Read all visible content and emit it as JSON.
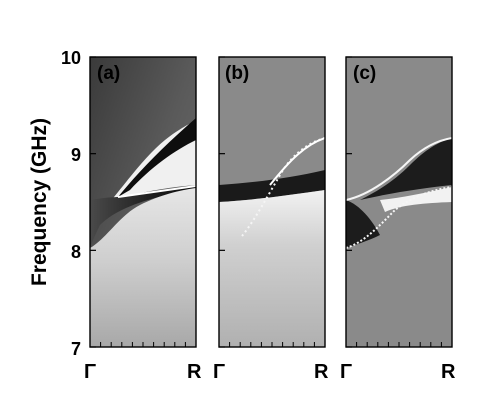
{
  "chart_data": {
    "type": "heatmap",
    "ylabel": "Frequency (GHz)",
    "ylim": [
      7,
      10
    ],
    "yticks": [
      7,
      8,
      9,
      10
    ],
    "xticks": [
      "Γ",
      "R"
    ],
    "grid": false,
    "panels": [
      {
        "label": "(a)",
        "background_shades": [
          "#3a3a3a",
          "#5a5a5a",
          "#707070",
          "#888888",
          "#b0b0b0",
          "#d0d0d0",
          "#e6e6e6"
        ],
        "mode_curves": [
          {
            "name": "lower edge",
            "x": [
              0,
              0.2,
              0.4,
              0.6,
              0.8,
              1.0
            ],
            "y": [
              8.0,
              8.1,
              8.3,
              8.5,
              8.6,
              8.65
            ]
          },
          {
            "name": "flat branch",
            "x": [
              0.25,
              0.5,
              0.75,
              1.0
            ],
            "y": [
              8.55,
              8.6,
              8.63,
              8.65
            ]
          },
          {
            "name": "upper edge",
            "x": [
              0.25,
              0.5,
              0.75,
              1.0
            ],
            "y": [
              8.55,
              8.75,
              9.0,
              9.15
            ]
          }
        ]
      },
      {
        "label": "(b)",
        "background_shades": [
          "#8a8a8a",
          "#8a8a8a",
          "#1e1e1e",
          "#f2f2f2",
          "#c8c8c8",
          "#b0b0b0"
        ],
        "mode_curves": [
          {
            "name": "lower edge",
            "x": [
              0,
              0.25,
              0.5,
              0.75,
              1.0
            ],
            "y": [
              8.5,
              8.5,
              8.53,
              8.57,
              8.62
            ]
          },
          {
            "name": "upper edge",
            "x": [
              0,
              0.5,
              0.75,
              1.0
            ],
            "y": [
              8.7,
              8.75,
              8.9,
              9.1
            ]
          },
          {
            "name": "dotted branch",
            "x": [
              0.25,
              0.4,
              0.55,
              0.7,
              0.85,
              1.0
            ],
            "y": [
              8.15,
              8.35,
              8.6,
              8.85,
              9.0,
              9.1
            ]
          }
        ]
      },
      {
        "label": "(c)",
        "background_shades": [
          "#909090",
          "#808080",
          "#1e1e1e",
          "#f2f2f2",
          "#7a7a7a"
        ],
        "mode_curves": [
          {
            "name": "lower edge",
            "x": [
              0,
              0.25,
              0.5,
              0.75,
              1.0
            ],
            "y": [
              8.0,
              8.2,
              8.45,
              8.6,
              8.65
            ]
          },
          {
            "name": "flat branch",
            "x": [
              0,
              0.5,
              1.0
            ],
            "y": [
              8.5,
              8.55,
              8.65
            ]
          },
          {
            "name": "upper edge",
            "x": [
              0,
              0.25,
              0.5,
              0.75,
              1.0
            ],
            "y": [
              8.5,
              8.6,
              8.75,
              8.95,
              9.1
            ]
          }
        ]
      }
    ]
  }
}
